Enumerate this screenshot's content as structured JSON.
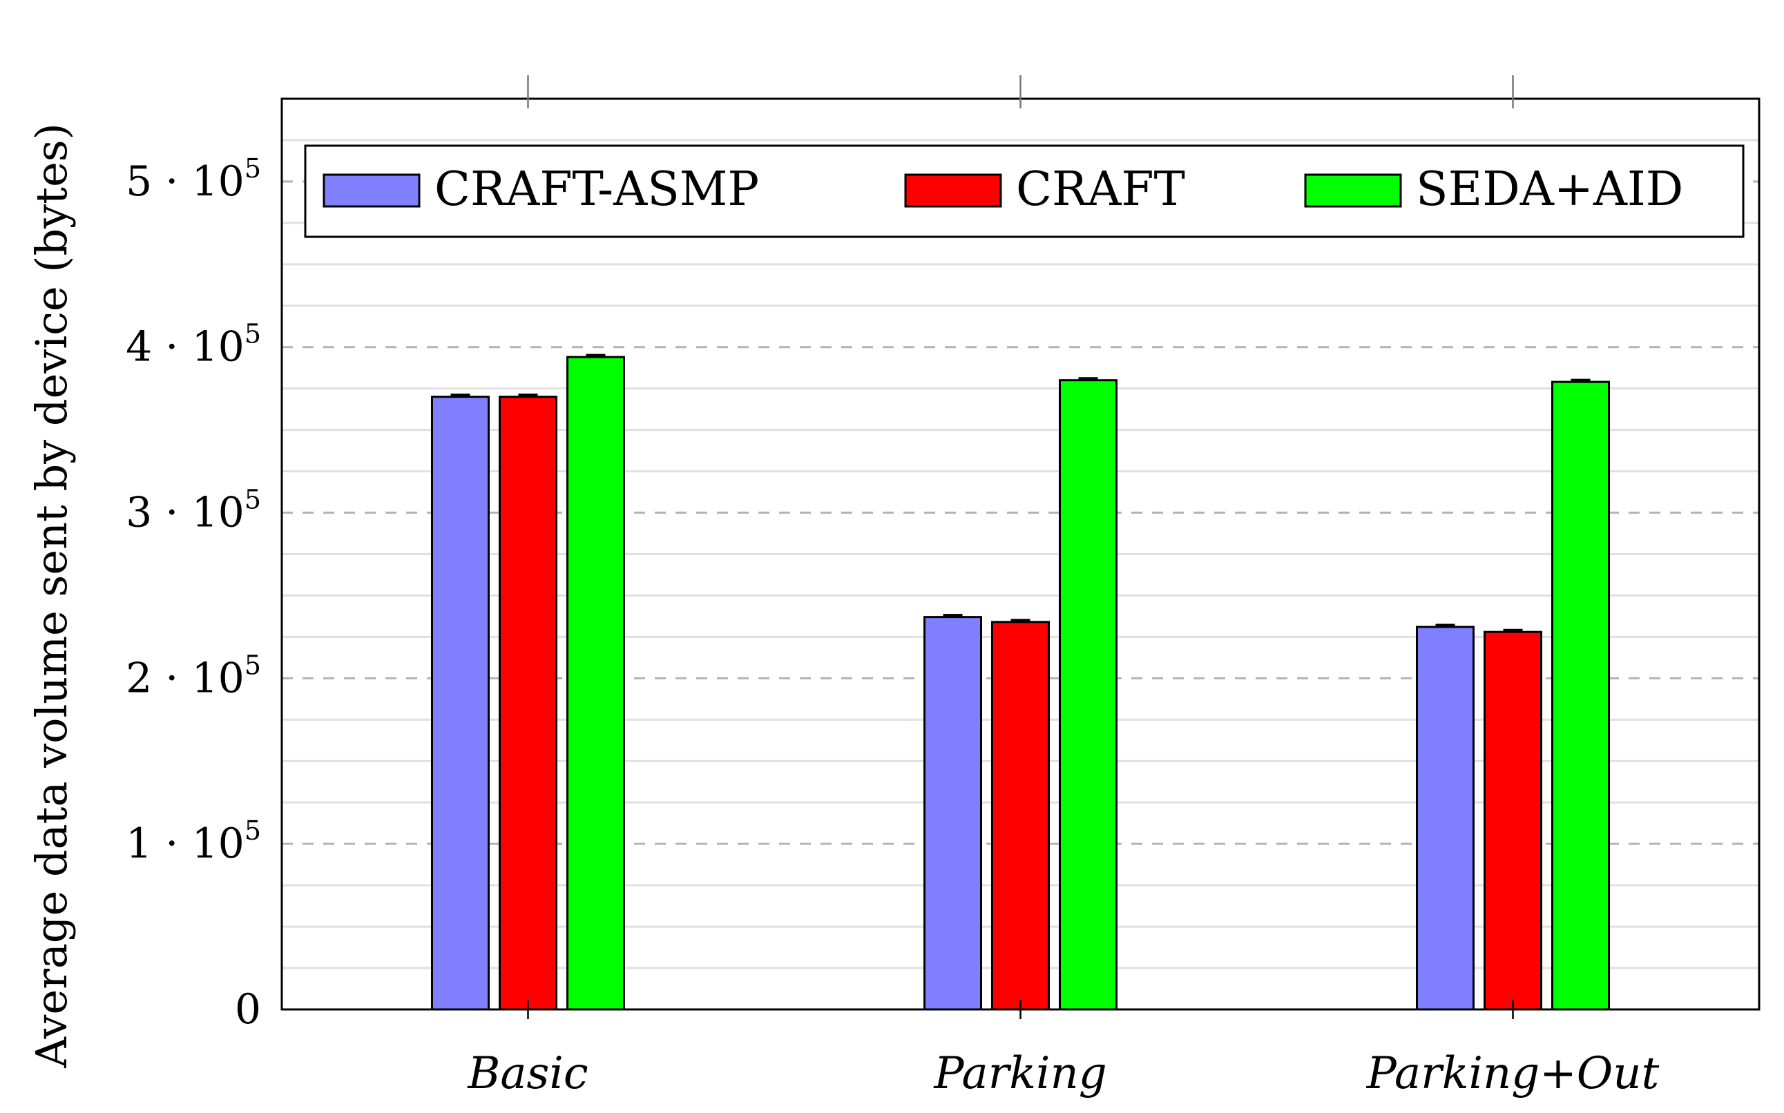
{
  "chart_data": {
    "type": "bar",
    "categories": [
      "Basic",
      "Parking",
      "Parking+Out"
    ],
    "series": [
      {
        "name": "CRAFT-ASMP",
        "color": "#8080ff",
        "values": [
          370000,
          237000,
          231000
        ]
      },
      {
        "name": "CRAFT",
        "color": "#ff0000",
        "values": [
          370000,
          234000,
          228000
        ]
      },
      {
        "name": "SEDA+AID",
        "color": "#00ff00",
        "values": [
          394000,
          380000,
          379000
        ]
      }
    ],
    "title": "",
    "xlabel": "",
    "ylabel": "Average data volume sent by device (bytes)",
    "ylim": [
      0,
      550000
    ],
    "yticks": [
      {
        "value": 0,
        "label": "0"
      },
      {
        "value": 100000,
        "label": "1 · 10",
        "exp": "5"
      },
      {
        "value": 200000,
        "label": "2 · 10",
        "exp": "5"
      },
      {
        "value": 300000,
        "label": "3 · 10",
        "exp": "5"
      },
      {
        "value": 400000,
        "label": "4 · 10",
        "exp": "5"
      },
      {
        "value": 500000,
        "label": "5 · 10",
        "exp": "5"
      }
    ],
    "grid": "horizontal (major dashed, minor solid)",
    "legend_position": "top",
    "error_bars": true
  }
}
